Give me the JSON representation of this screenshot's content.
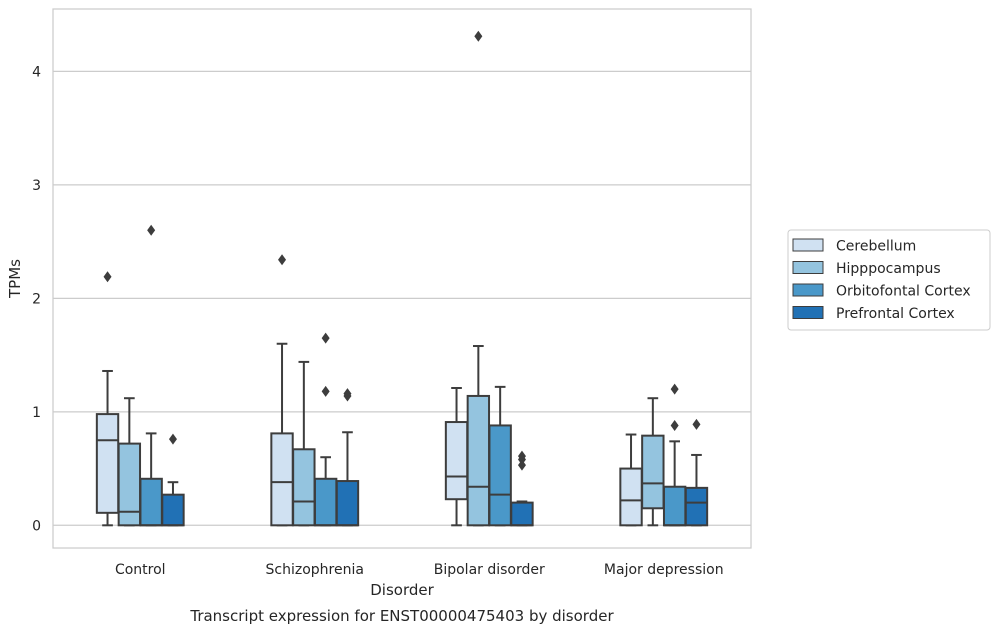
{
  "chart_data": {
    "type": "box",
    "title": "",
    "caption": "Transcript expression for ENST00000475403 by disorder",
    "xlabel": "Disorder",
    "ylabel": "TPMs",
    "ylim": [
      -0.2,
      4.55
    ],
    "yticks": [
      0,
      1,
      2,
      3,
      4
    ],
    "grid": true,
    "legend_position": "right",
    "categories": [
      "Control",
      "Schizophrenia",
      "Bipolar disorder",
      "Major depression"
    ],
    "series": [
      {
        "name": "Cerebellum",
        "color": "#d0e1f2",
        "boxes": [
          {
            "whisker_low": 0,
            "q1": 0.11,
            "median": 0.75,
            "q3": 0.98,
            "whisker_high": 1.36,
            "outliers": [
              2.19
            ]
          },
          {
            "whisker_low": 0,
            "q1": 0,
            "median": 0.38,
            "q3": 0.81,
            "whisker_high": 1.6,
            "outliers": [
              2.34
            ]
          },
          {
            "whisker_low": 0,
            "q1": 0.23,
            "median": 0.43,
            "q3": 0.91,
            "whisker_high": 1.21,
            "outliers": []
          },
          {
            "whisker_low": 0,
            "q1": 0,
            "median": 0.22,
            "q3": 0.5,
            "whisker_high": 0.8,
            "outliers": []
          }
        ]
      },
      {
        "name": "Hipppocampus",
        "color": "#94c4df",
        "boxes": [
          {
            "whisker_low": 0,
            "q1": 0,
            "median": 0.12,
            "q3": 0.72,
            "whisker_high": 1.12,
            "outliers": []
          },
          {
            "whisker_low": 0,
            "q1": 0,
            "median": 0.21,
            "q3": 0.67,
            "whisker_high": 1.44,
            "outliers": []
          },
          {
            "whisker_low": 0,
            "q1": 0,
            "median": 0.34,
            "q3": 1.14,
            "whisker_high": 1.58,
            "outliers": [
              4.31
            ]
          },
          {
            "whisker_low": 0,
            "q1": 0.15,
            "median": 0.37,
            "q3": 0.79,
            "whisker_high": 1.12,
            "outliers": []
          }
        ]
      },
      {
        "name": "Orbitofontal Cortex",
        "color": "#4a98c9",
        "boxes": [
          {
            "whisker_low": 0,
            "q1": 0,
            "median": 0,
            "q3": 0.41,
            "whisker_high": 0.81,
            "outliers": [
              2.6
            ]
          },
          {
            "whisker_low": 0,
            "q1": 0,
            "median": 0,
            "q3": 0.41,
            "whisker_high": 0.6,
            "outliers": [
              1.65,
              1.18
            ]
          },
          {
            "whisker_low": 0,
            "q1": 0,
            "median": 0.27,
            "q3": 0.88,
            "whisker_high": 1.22,
            "outliers": []
          },
          {
            "whisker_low": 0,
            "q1": 0,
            "median": 0,
            "q3": 0.34,
            "whisker_high": 0.74,
            "outliers": [
              1.2,
              0.88
            ]
          }
        ]
      },
      {
        "name": "Prefrontal Cortex",
        "color": "#2171b5",
        "boxes": [
          {
            "whisker_low": 0,
            "q1": 0,
            "median": 0,
            "q3": 0.27,
            "whisker_high": 0.38,
            "outliers": [
              0.76
            ]
          },
          {
            "whisker_low": 0,
            "q1": 0,
            "median": 0,
            "q3": 0.39,
            "whisker_high": 0.82,
            "outliers": [
              1.16,
              1.14
            ]
          },
          {
            "whisker_low": 0,
            "q1": 0,
            "median": 0,
            "q3": 0.2,
            "whisker_high": 0.21,
            "outliers": [
              0.61,
              0.58,
              0.53
            ]
          },
          {
            "whisker_low": 0,
            "q1": 0,
            "median": 0.2,
            "q3": 0.33,
            "whisker_high": 0.62,
            "outliers": [
              0.89
            ]
          }
        ]
      }
    ]
  }
}
